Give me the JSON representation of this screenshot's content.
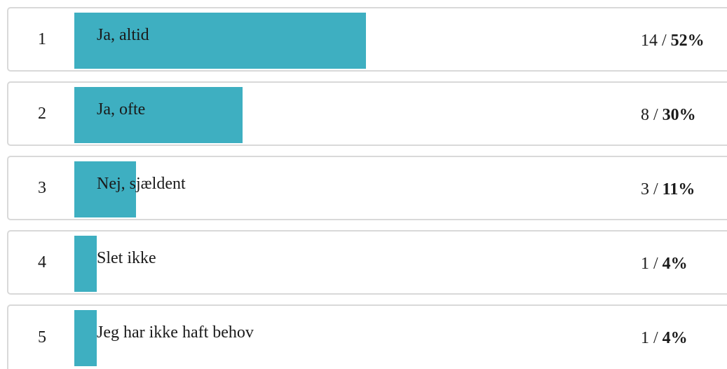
{
  "chart_data": {
    "type": "bar",
    "orientation": "horizontal",
    "bar_color": "#3eafc1",
    "border_color": "#d9d9d9",
    "rows": [
      {
        "index": "1",
        "label": "Ja, altid",
        "count": "14",
        "separator": " / ",
        "percent_label": "52%",
        "percent": 52
      },
      {
        "index": "2",
        "label": "Ja, ofte",
        "count": "8",
        "separator": " / ",
        "percent_label": "30%",
        "percent": 30
      },
      {
        "index": "3",
        "label": "Nej, sjældent",
        "count": "3",
        "separator": " / ",
        "percent_label": "11%",
        "percent": 11
      },
      {
        "index": "4",
        "label": "Slet ikke",
        "count": "1",
        "separator": " / ",
        "percent_label": "4%",
        "percent": 4
      },
      {
        "index": "5",
        "label": "Jeg har ikke haft behov",
        "count": "1",
        "separator": " / ",
        "percent_label": "4%",
        "percent": 4
      }
    ]
  }
}
